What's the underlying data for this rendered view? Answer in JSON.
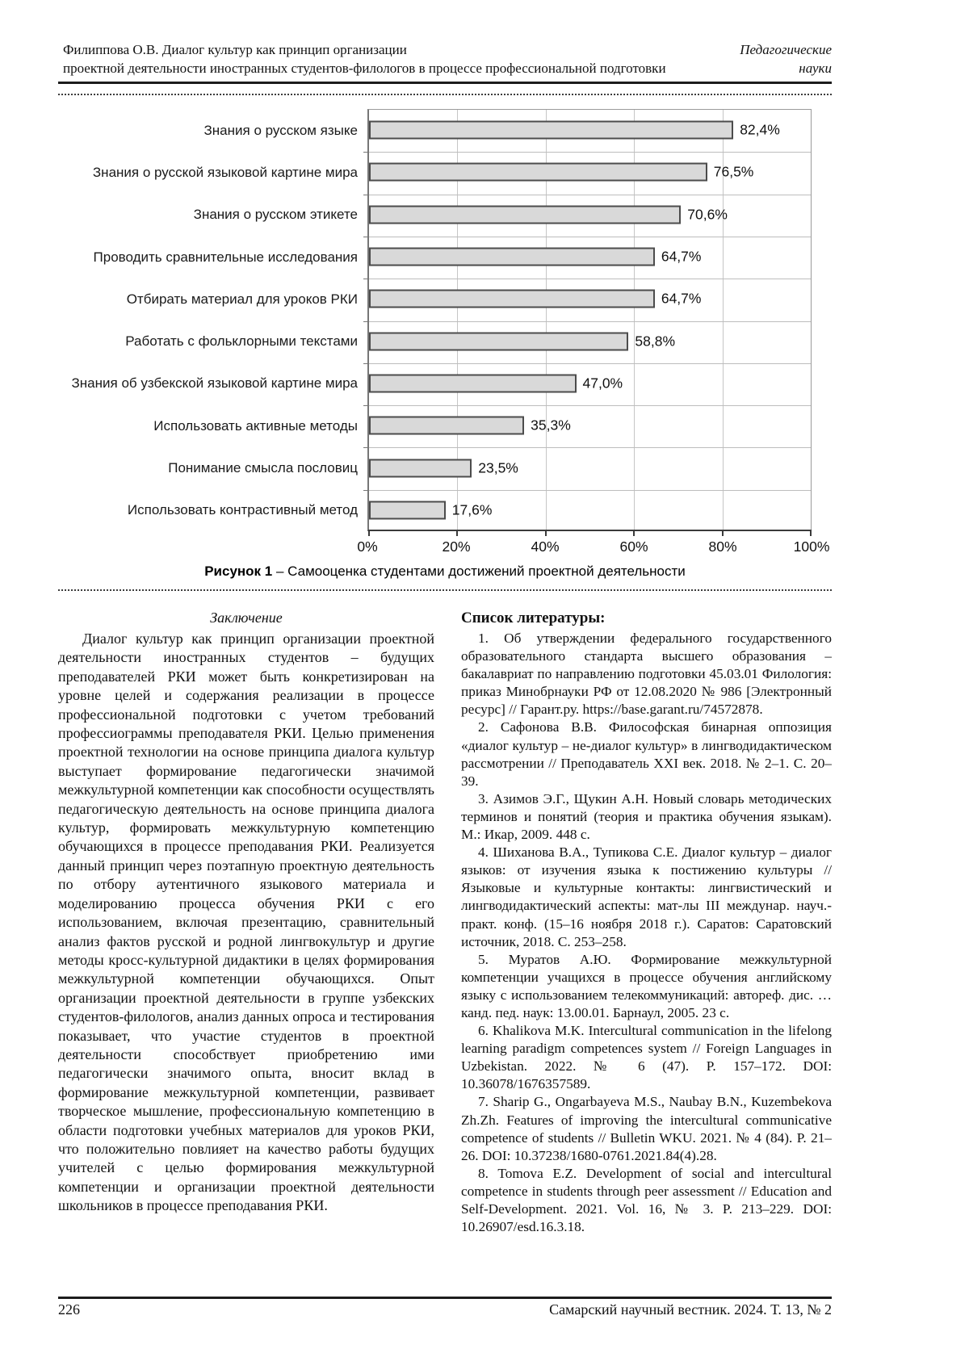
{
  "header": {
    "author_line": "Филиппова О.В. Диалог культур как принцип организации",
    "title_line": "проектной деятельности иностранных студентов-филологов в процессе профессиональной подготовки",
    "section_line1": "Педагогические",
    "section_line2": "науки"
  },
  "chart_data": {
    "type": "bar",
    "orientation": "horizontal",
    "title": "",
    "xlabel": "",
    "ylabel": "",
    "xlim": [
      0,
      100
    ],
    "grid": true,
    "categories": [
      "Знания о русском языке",
      "Знания о русской языковой картине мира",
      "Знания о русском этикете",
      "Проводить сравнительные исследования",
      "Отбирать материал для уроков РКИ",
      "Работать с фольклорными текстами",
      "Знания об узбекской языковой картине мира",
      "Использовать активные методы",
      "Понимание смысла пословиц",
      "Использовать контрастивный метод"
    ],
    "values": [
      82.4,
      76.5,
      70.6,
      64.7,
      64.7,
      58.8,
      47.0,
      35.3,
      23.5,
      17.6
    ],
    "value_labels": [
      "82,4%",
      "76,5%",
      "70,6%",
      "64,7%",
      "64,7%",
      "58,8%",
      "47,0%",
      "35,3%",
      "23,5%",
      "17,6%"
    ],
    "x_ticks": [
      "0%",
      "20%",
      "40%",
      "60%",
      "80%",
      "100%"
    ],
    "bar_fill": "#d9d9d9",
    "bar_border": "#4c4c4c"
  },
  "figure": {
    "caption_label": "Рисунок 1",
    "caption_text": "– Самооценка студентами достижений проектной деятельности"
  },
  "conclusion": {
    "heading": "Заключение",
    "paragraph": "Диалог культур как принцип организации проектной деятельности иностранных студентов – будущих преподавателей РКИ может быть конкретизирован на уровне целей и содержания реализации в процессе профессиональной подготовки с учетом требований профессиограммы преподавателя РКИ. Целью применения проектной технологии на основе принципа диалога культур выступает формирование педагогически значимой межкультурной компетенции как способности осуществлять педагогическую деятельность на основе принципа диалога культур, формировать межкультурную компетенцию обучающихся в процессе преподавания РКИ. Реализуется данный принцип через поэтапную проектную деятельность по отбору аутентичного языкового материала и моделированию процесса обучения РКИ с его использованием, включая презентацию, сравнительный анализ фактов русской и родной лингвокультур и другие методы кросс-культурной дидактики в целях формирования межкультурной компетенции обучающихся. Опыт организации проектной деятельности в группе узбекских студентов-филологов, анализ данных опроса и тестирования показывает, что участие студентов в проектной деятельности способствует приобретению ими педагогически значимого опыта, вносит вклад в формирование межкультурной компетенции, развивает творческое мышление, профессиональную компетенцию в области подготовки учебных материалов для уроков РКИ, что положительно повлияет на качество работы будущих учителей с целью формирования межкультурной компетенции и организации проектной деятельности школьников в процессе преподавания РКИ."
  },
  "references": {
    "heading": "Список литературы:",
    "items": [
      "1. Об утверждении федерального государственного образовательного стандарта высшего образования – бакалавриат по направлению подготовки 45.03.01 Филология: приказ Минобрнауки РФ от 12.08.2020 № 986 [Электронный ресурс] // Гарант.ру. https://base.garant.ru/74572878.",
      "2. Сафонова В.В. Философская бинарная оппозиция «диалог культур – не-диалог культур» в лингводидактическом рассмотрении // Преподаватель XXI век. 2018. № 2–1. С. 20–39.",
      "3. Азимов Э.Г., Щукин А.Н. Новый словарь методических терминов и понятий (теория и практика обучения языкам). М.: Икар, 2009. 448 с.",
      "4. Шиханова В.А., Тупикова С.Е. Диалог культур – диалог языков: от изучения языка к постижению культуры // Языковые и культурные контакты: лингвистический и лингводидактический аспекты: мат-лы III междунар. науч.-практ. конф. (15–16 ноября 2018 г.). Саратов: Саратовский источник, 2018. С. 253–258.",
      "5. Муратов А.Ю. Формирование межкультурной компетенции учащихся в процессе обучения английскому языку с использованием телекоммуникаций: автореф. дис. … канд. пед. наук: 13.00.01. Барнаул, 2005. 23 с.",
      "6. Khalikova M.K. Intercultural communication in the lifelong learning paradigm competences system // Foreign Languages in Uzbekistan. 2022. № 6 (47). P. 157–172. DOI: 10.36078/1676357589.",
      "7. Sharip G., Ongarbayeva M.S., Naubay B.N., Kuzembekova Zh.Zh. Features of improving the intercultural communicative competence of students // Bulletin WKU. 2021. № 4 (84). P. 21–26. DOI: 10.37238/1680-0761.2021.84(4).28.",
      "8. Tomova E.Z. Development of social and intercultural competence in students through peer assessment // Education and Self-Development. 2021. Vol. 16, № 3. P. 213–229. DOI: 10.26907/esd.16.3.18."
    ]
  },
  "footer": {
    "page_number": "226",
    "journal": "Самарский научный вестник. 2024. Т. 13, № 2"
  }
}
